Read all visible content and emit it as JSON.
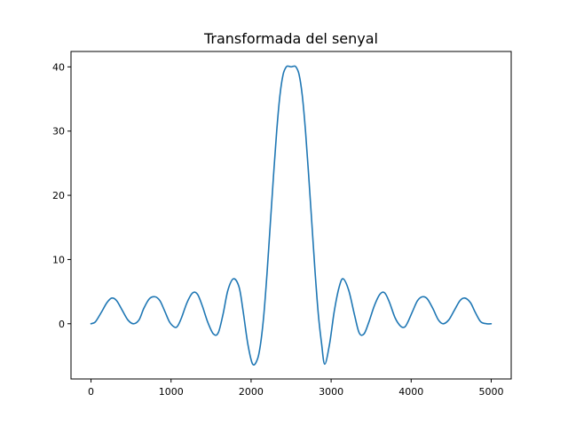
{
  "colors": {
    "line": "#1f77b4",
    "axes": "#000000",
    "background": "#ffffff"
  },
  "chart_data": {
    "type": "line",
    "title": "Transformada del senyal",
    "xlabel": "",
    "ylabel": "",
    "xlim": [
      -250,
      5250
    ],
    "ylim": [
      -8.6,
      42.4
    ],
    "xticks": [
      0,
      1000,
      2000,
      3000,
      4000,
      5000
    ],
    "yticks": [
      0,
      10,
      20,
      30,
      40
    ],
    "grid": false,
    "legend": "none",
    "series": [
      {
        "x": [
          0,
          55,
          130,
          200,
          260,
          320,
          390,
          460,
          530,
          600,
          660,
          730,
          800,
          860,
          920,
          980,
          1040,
          1080,
          1130,
          1200,
          1270,
          1330,
          1390,
          1460,
          1530,
          1590,
          1650,
          1710,
          1780,
          1850,
          1900,
          1960,
          2020,
          2080,
          2120,
          2160,
          2200,
          2240,
          2280,
          2320,
          2360,
          2400,
          2440,
          2470,
          2500,
          2530,
          2560,
          2600,
          2640,
          2680,
          2720,
          2760,
          2800,
          2840,
          2880,
          2920,
          2980,
          3040,
          3100,
          3150,
          3220,
          3290,
          3350,
          3410,
          3470,
          3540,
          3610,
          3670,
          3730,
          3800,
          3870,
          3920,
          3960,
          4020,
          4080,
          4140,
          4200,
          4270,
          4340,
          4400,
          4470,
          4540,
          4610,
          4670,
          4740,
          4800,
          4870,
          4945,
          5000
        ],
        "y": [
          0,
          0.3,
          1.8,
          3.3,
          4.0,
          3.6,
          2.1,
          0.6,
          0.0,
          0.6,
          2.4,
          3.9,
          4.2,
          3.6,
          2.0,
          0.3,
          -0.5,
          -0.4,
          0.9,
          3.3,
          4.8,
          4.6,
          2.8,
          0.2,
          -1.6,
          -1.4,
          1.5,
          5.2,
          7.0,
          5.7,
          2.0,
          -3.2,
          -6.3,
          -5.5,
          -3.0,
          1.5,
          8.0,
          15.5,
          23.0,
          30.0,
          35.5,
          38.8,
          40.0,
          40.1,
          40.0,
          40.1,
          40.0,
          38.8,
          35.5,
          30.0,
          23.0,
          15.5,
          8.0,
          1.5,
          -3.0,
          -6.3,
          -3.2,
          2.0,
          5.7,
          7.0,
          5.2,
          1.5,
          -1.4,
          -1.6,
          0.2,
          2.8,
          4.6,
          4.8,
          3.3,
          0.9,
          -0.4,
          -0.5,
          0.3,
          2.0,
          3.6,
          4.2,
          3.9,
          2.4,
          0.6,
          0.0,
          0.6,
          2.1,
          3.6,
          4.0,
          3.3,
          1.8,
          0.3,
          0.0,
          0.0
        ]
      }
    ]
  }
}
